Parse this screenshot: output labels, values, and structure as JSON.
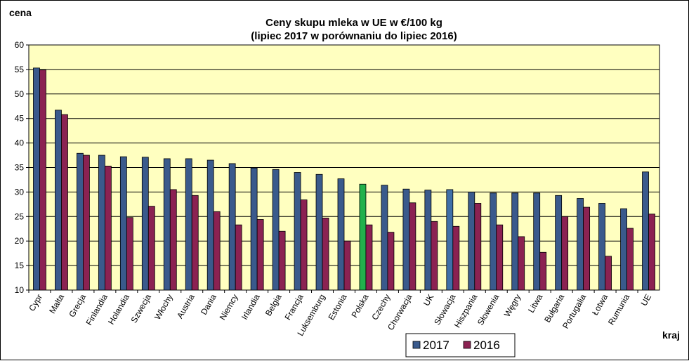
{
  "chart_data": {
    "type": "bar",
    "title": "Ceny skupu mleka  w UE w €/100 kg",
    "subtitle": "(lipiec  2017  w porównaniu do lipiec  2016)",
    "ylabel": "cena",
    "xlabel": "kraj",
    "ylim": [
      10,
      60
    ],
    "yticks": [
      10,
      15,
      20,
      25,
      30,
      35,
      40,
      45,
      50,
      55,
      60
    ],
    "grid": true,
    "legend_position": "bottom",
    "categories": [
      "Cypr",
      "Malta",
      "Grecja",
      "Finlandia",
      "Holandia",
      "Szwecja",
      "Włochy",
      "Austria",
      "Dania",
      "Niemcy",
      "Irlandia",
      "Belgia",
      "Francja",
      "Luksemburg",
      "Estonia",
      "Polska",
      "Czechy",
      "Chorwacja",
      "UK",
      "Słowacja",
      "Hiszpania",
      "Słowenia",
      "Węgry",
      "Litwa",
      "Bułgaria",
      "Portugalia",
      "Łotwa",
      "Rumunia",
      "UE"
    ],
    "series": [
      {
        "name": "2017",
        "color": "#3a5a8c",
        "values": [
          55.3,
          46.7,
          37.9,
          37.5,
          37.2,
          37.1,
          36.8,
          36.8,
          36.5,
          35.8,
          34.9,
          34.6,
          34.0,
          33.6,
          32.7,
          31.6,
          31.4,
          30.6,
          30.4,
          30.5,
          30.0,
          29.8,
          29.8,
          29.8,
          29.3,
          28.7,
          27.7,
          26.6,
          34.1
        ]
      },
      {
        "name": "2016",
        "color": "#8b2252",
        "values": [
          54.9,
          45.8,
          37.5,
          35.3,
          24.8,
          27.1,
          30.5,
          29.3,
          26.0,
          23.3,
          24.4,
          22.0,
          28.4,
          24.7,
          20.0,
          23.3,
          21.8,
          27.8,
          24.0,
          23.0,
          27.7,
          23.3,
          20.9,
          17.7,
          25.0,
          26.9,
          16.9,
          22.6,
          25.5
        ]
      }
    ],
    "highlight": {
      "Polska": "#22b14c",
      "Słowacja": "#3f6fa8"
    },
    "plot_background": "#ffffc0"
  }
}
